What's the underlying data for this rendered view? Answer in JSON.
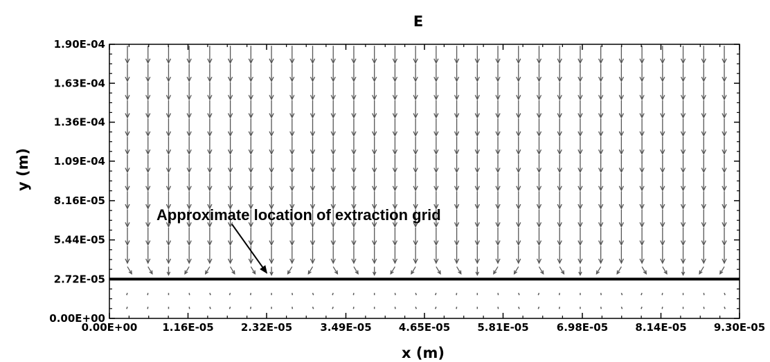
{
  "chart_data": {
    "type": "vector-field",
    "title": "E",
    "xlabel": "x (m)",
    "ylabel": "y (m)",
    "xlim": [
      0,
      9.3e-05
    ],
    "ylim": [
      0,
      0.00019
    ],
    "x_ticks": [
      0,
      1.16e-05,
      2.32e-05,
      3.49e-05,
      4.65e-05,
      5.81e-05,
      6.98e-05,
      8.14e-05,
      9.3e-05
    ],
    "x_tick_labels": [
      "0.00E+00",
      "1.16E-05",
      "2.32E-05",
      "3.49E-05",
      "4.65E-05",
      "5.81E-05",
      "6.98E-05",
      "8.14E-05",
      "9.30E-05"
    ],
    "y_ticks": [
      0,
      2.72e-05,
      5.44e-05,
      8.16e-05,
      0.000109,
      0.000136,
      0.000163,
      0.00019
    ],
    "y_tick_labels": [
      "0.00E+00",
      "2.72E-05",
      "5.44E-05",
      "8.16E-05",
      "1.09E-04",
      "1.36E-04",
      "1.63E-04",
      "1.90E-04"
    ],
    "grid": false,
    "arrow_columns": 30,
    "arrow_rows_above_grid": 13,
    "arrow_rows_below_grid": 2,
    "extraction_grid_y": 2.72e-05,
    "annotation": {
      "text": "Approximate location of extraction grid",
      "points_to": [
        2.34e-05,
        2.78e-05
      ]
    },
    "colors": {
      "arrows": "#555555",
      "grid_line": "#000000",
      "axes": "#000000"
    }
  }
}
